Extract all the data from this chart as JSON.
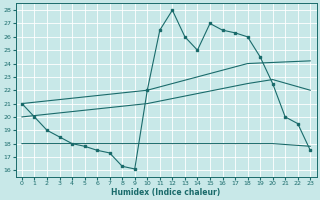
{
  "xlabel": "Humidex (Indice chaleur)",
  "bg_color": "#c8e8e8",
  "line_color": "#1a6b6b",
  "grid_color": "#ffffff",
  "xlim": [
    -0.5,
    23.5
  ],
  "ylim": [
    15.5,
    28.5
  ],
  "yticks": [
    16,
    17,
    18,
    19,
    20,
    21,
    22,
    23,
    24,
    25,
    26,
    27,
    28
  ],
  "xticks": [
    0,
    1,
    2,
    3,
    4,
    5,
    6,
    7,
    8,
    9,
    10,
    11,
    12,
    13,
    14,
    15,
    16,
    17,
    18,
    19,
    20,
    21,
    22,
    23
  ],
  "line1_x": [
    0,
    1,
    2,
    3,
    4,
    5,
    6,
    7,
    8,
    9,
    10,
    11,
    12,
    13,
    14,
    15,
    16,
    17,
    18,
    19,
    20,
    21,
    22,
    23
  ],
  "line1_y": [
    21.0,
    20.0,
    19.0,
    18.5,
    18.0,
    17.8,
    17.5,
    17.3,
    16.3,
    16.1,
    22.0,
    26.5,
    28.0,
    26.0,
    25.0,
    27.0,
    26.5,
    26.3,
    26.0,
    24.5,
    22.5,
    20.0,
    19.5,
    17.5
  ],
  "line2_x": [
    0,
    10,
    18,
    23
  ],
  "line2_y": [
    21.0,
    22.0,
    24.0,
    24.2
  ],
  "line3_x": [
    0,
    10,
    18,
    20,
    23
  ],
  "line3_y": [
    20.0,
    21.0,
    22.5,
    22.8,
    22.0
  ],
  "line4_x": [
    0,
    9,
    10,
    19,
    20,
    23
  ],
  "line4_y": [
    18.0,
    18.0,
    18.0,
    18.0,
    18.0,
    17.8
  ]
}
